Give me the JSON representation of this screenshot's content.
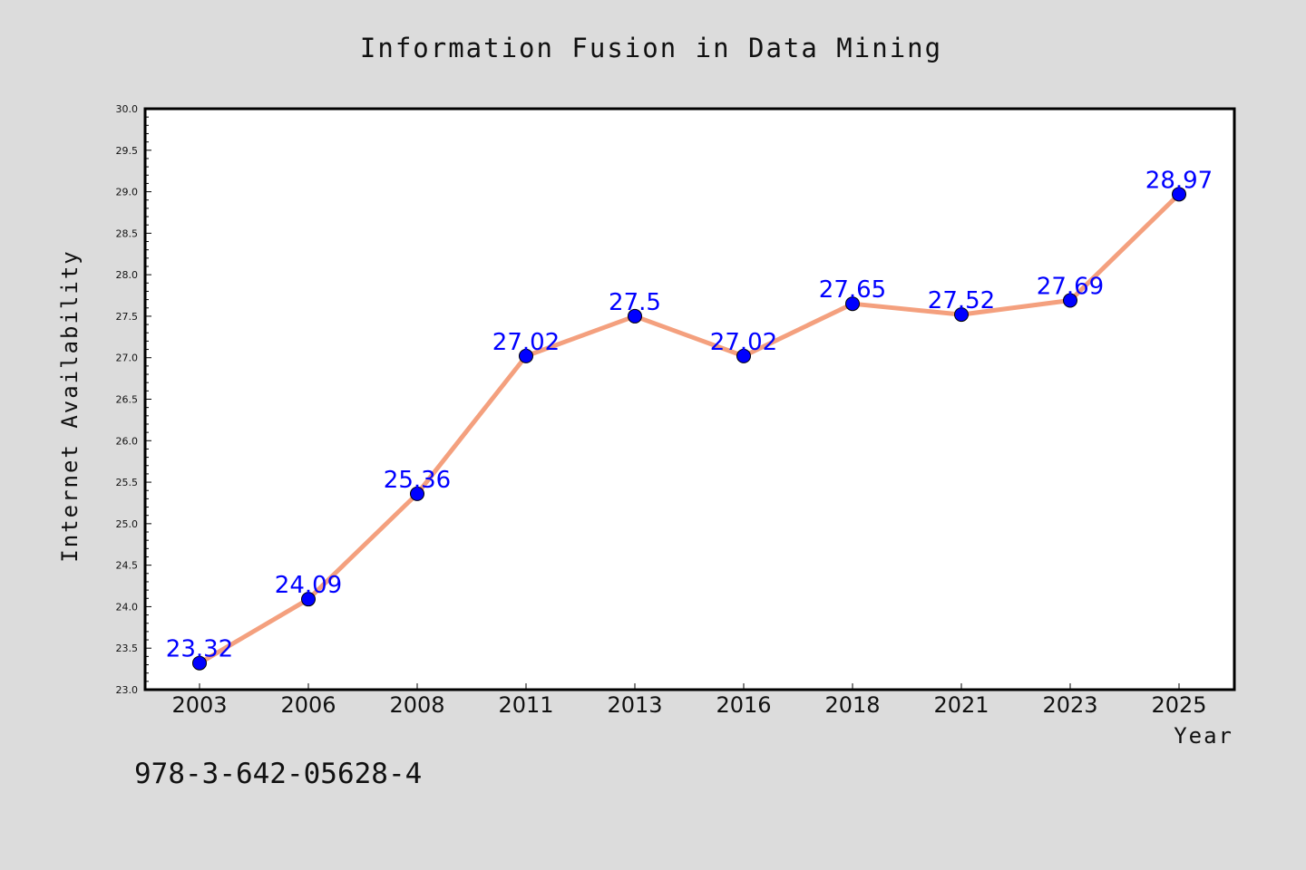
{
  "chart_data": {
    "type": "line",
    "title": "Information Fusion in Data Mining",
    "xlabel": "Year",
    "ylabel": "Internet Availability",
    "categories": [
      "2003",
      "2006",
      "2008",
      "2011",
      "2013",
      "2016",
      "2018",
      "2021",
      "2023",
      "2025"
    ],
    "series": [
      {
        "values": [
          23.32,
          24.09,
          25.36,
          27.02,
          27.5,
          27.02,
          27.65,
          27.52,
          27.69,
          28.97
        ],
        "data_labels": [
          "23.32",
          "24.09",
          "25.36",
          "27.02",
          "27.5",
          "27.02",
          "27.65",
          "27.52",
          "27.69",
          "28.97"
        ],
        "line_color": "#f4a07e",
        "marker_color": "#0000ff"
      }
    ],
    "ylim": [
      23.0,
      30.0
    ],
    "yticks": [
      "23.0",
      "23.5",
      "24.0",
      "24.5",
      "25.0",
      "25.5",
      "26.0",
      "26.5",
      "27.0",
      "27.5",
      "28.0",
      "28.5",
      "29.0",
      "29.5",
      "30.0"
    ],
    "grid": false,
    "legend": "none"
  },
  "footer_text": "978-3-642-05628-4",
  "colors": {
    "background": "#dcdcdc",
    "plot_background": "#ffffff",
    "line": "#f4a07e",
    "marker": "#0000ff",
    "data_label": "#0000ff"
  }
}
